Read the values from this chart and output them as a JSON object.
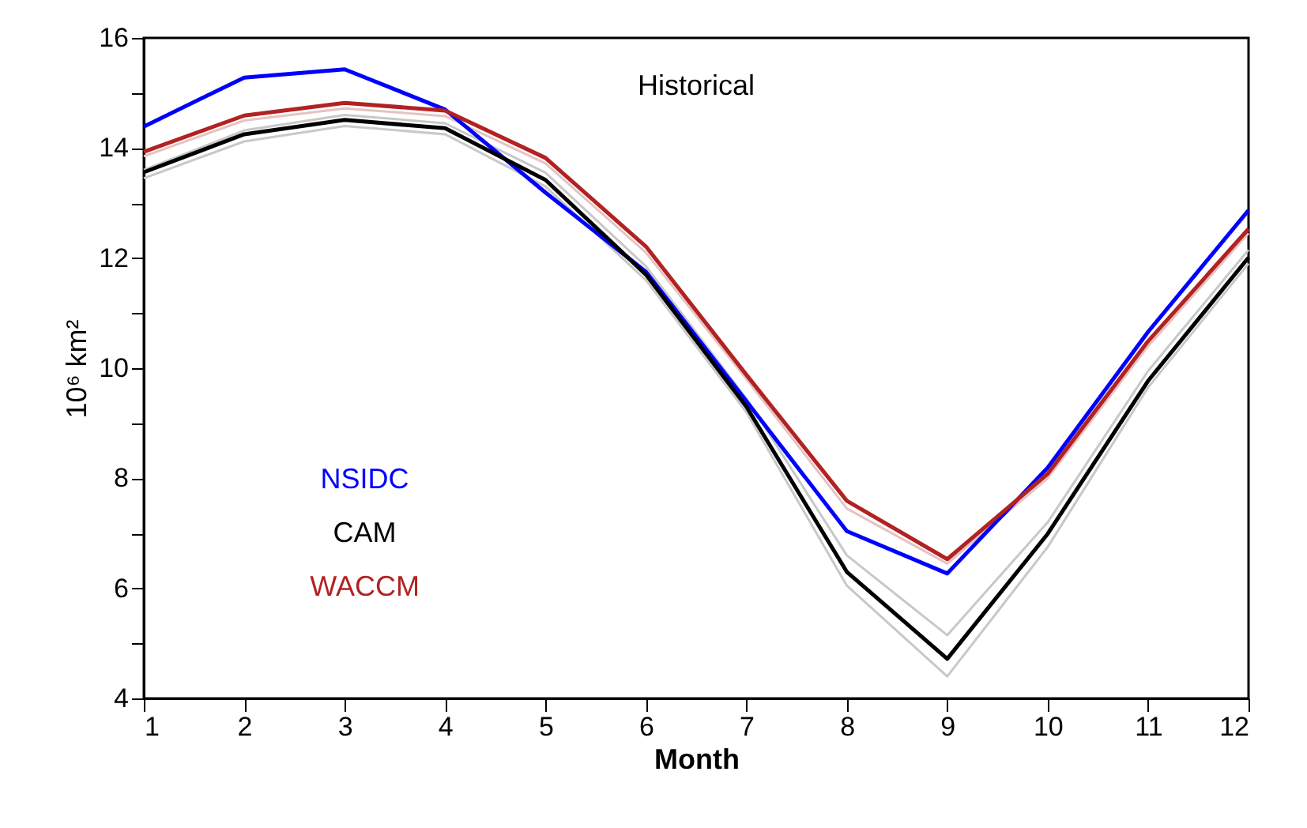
{
  "chart_data": {
    "type": "line",
    "title": "Historical",
    "xlabel": "Month",
    "ylabel": "10⁶ km²",
    "x": [
      1,
      2,
      3,
      4,
      5,
      6,
      7,
      8,
      9,
      10,
      11,
      12
    ],
    "series": [
      {
        "color": "#c8c8c8",
        "values": [
          13.45,
          14.12,
          14.4,
          14.25,
          13.3,
          11.6,
          9.2,
          6.05,
          4.4,
          6.75,
          9.65,
          11.9
        ]
      },
      {
        "color": "#c8c8c8",
        "values": [
          13.6,
          14.32,
          14.6,
          14.45,
          13.55,
          11.85,
          9.45,
          6.6,
          5.15,
          7.2,
          9.95,
          12.15
        ]
      },
      {
        "color": "#e6c3c3",
        "values": [
          13.85,
          14.5,
          14.72,
          14.58,
          13.72,
          12.1,
          9.8,
          7.45,
          6.45,
          8.0,
          10.4,
          12.45
        ]
      },
      {
        "name": "NSIDC",
        "color": "#0000ff",
        "values": [
          14.39,
          15.28,
          15.43,
          14.7,
          13.19,
          11.75,
          9.4,
          7.04,
          6.27,
          8.19,
          10.66,
          12.87
        ]
      },
      {
        "name": "CAM",
        "color": "#000000",
        "values": [
          13.56,
          14.25,
          14.51,
          14.36,
          13.42,
          11.7,
          9.3,
          6.3,
          4.72,
          6.99,
          9.77,
          12.01
        ]
      },
      {
        "name": "WACCM",
        "color": "#b22222",
        "values": [
          13.93,
          14.59,
          14.82,
          14.68,
          13.82,
          12.21,
          9.88,
          7.59,
          6.53,
          8.08,
          10.49,
          12.53
        ]
      }
    ],
    "xlim": [
      1,
      12
    ],
    "xticks": [
      1,
      2,
      3,
      4,
      5,
      6,
      7,
      8,
      9,
      10,
      11,
      12
    ],
    "ylim": [
      4,
      16
    ],
    "yticks": [
      4,
      {
        "value": 5,
        "label": null
      },
      6,
      {
        "value": 7,
        "label": null
      },
      8,
      {
        "value": 9,
        "label": null
      },
      10,
      {
        "value": 11,
        "label": null
      },
      12,
      {
        "value": 13,
        "label": null
      },
      14,
      {
        "value": 15,
        "label": null
      },
      16
    ],
    "legend": "left",
    "grid": false,
    "marker": "none",
    "line_style": "solid"
  }
}
